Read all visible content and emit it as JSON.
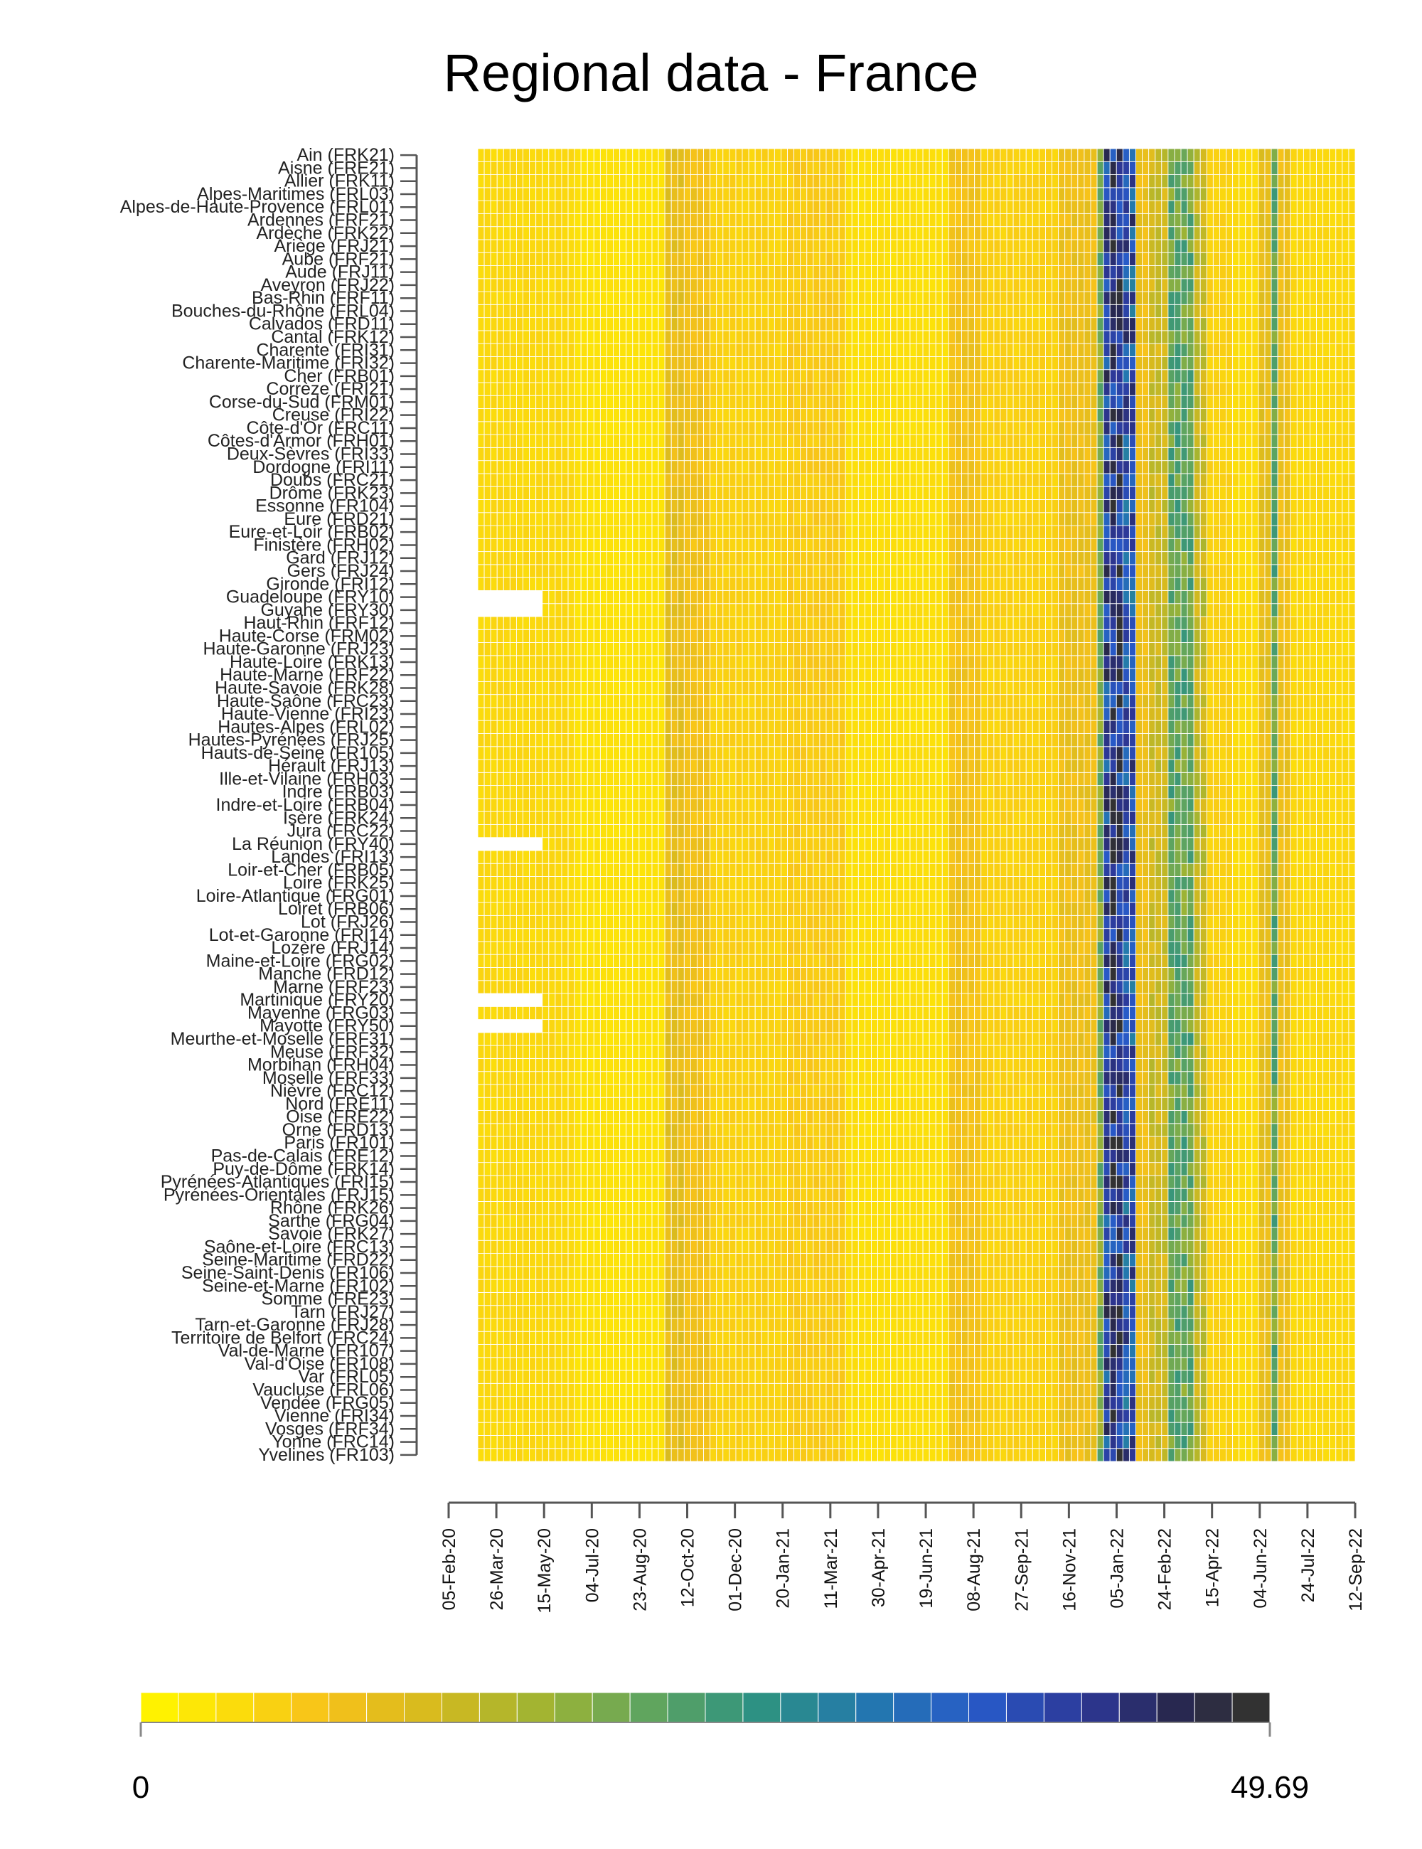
{
  "chart_data": {
    "type": "heatmap",
    "title": "Regional data - France",
    "regions": [
      "Yvelines (FR103)",
      "Yonne (FRC14)",
      "Vosges (FRF34)",
      "Vienne (FRI34)",
      "Vendée (FRG05)",
      "Vaucluse (FRL06)",
      "Var (FRL05)",
      "Val-d'Oise (FR108)",
      "Val-de-Marne (FR107)",
      "Territoire de Belfort (FRC24)",
      "Tarn-et-Garonne (FRJ28)",
      "Tarn (FRJ27)",
      "Somme (FRE23)",
      "Seine-et-Marne (FR102)",
      "Seine-Saint-Denis (FR106)",
      "Seine-Maritime (FRD22)",
      "Saône-et-Loire (FRC13)",
      "Savoie (FRK27)",
      "Sarthe (FRG04)",
      "Rhône (FRK26)",
      "Pyrénées-Orientales (FRJ15)",
      "Pyrénées-Atlantiques (FRI15)",
      "Puy-de-Dôme (FRK14)",
      "Pas-de-Calais (FRE12)",
      "Paris (FR101)",
      "Orne (FRD13)",
      "Oise (FRE22)",
      "Nord (FRE11)",
      "Nièvre (FRC12)",
      "Moselle (FRF33)",
      "Morbihan (FRH04)",
      "Meuse (FRF32)",
      "Meurthe-et-Moselle (FRF31)",
      "Mayotte (FRY50)",
      "Mayenne (FRG03)",
      "Martinique (FRY20)",
      "Marne (FRF23)",
      "Manche (FRD12)",
      "Maine-et-Loire (FRG02)",
      "Lozère (FRJ14)",
      "Lot-et-Garonne (FRI14)",
      "Lot (FRJ26)",
      "Loiret (FRB06)",
      "Loire-Atlantique (FRG01)",
      "Loire (FRK25)",
      "Loir-et-Cher (FRB05)",
      "Landes (FRI13)",
      "La Réunion (FRY40)",
      "Jura (FRC22)",
      "Isère (FRK24)",
      "Indre-et-Loire (FRB04)",
      "Indre (FRB03)",
      "Ille-et-Vilaine (FRH03)",
      "Hérault (FRJ13)",
      "Hauts-de-Seine (FR105)",
      "Hautes-Pyrénées (FRJ25)",
      "Hautes-Alpes (FRL02)",
      "Haute-Vienne (FRI23)",
      "Haute-Saône (FRC23)",
      "Haute-Savoie (FRK28)",
      "Haute-Marne (FRF22)",
      "Haute-Loire (FRK13)",
      "Haute-Garonne (FRJ23)",
      "Haute-Corse (FRM02)",
      "Haut-Rhin (FRF12)",
      "Guyane (FRY30)",
      "Guadeloupe (FRY10)",
      "Gironde (FRI12)",
      "Gers (FRJ24)",
      "Gard (FRJ12)",
      "Finistère (FRH02)",
      "Eure-et-Loir (FRB02)",
      "Eure (FRD21)",
      "Essonne (FR104)",
      "Drôme (FRK23)",
      "Doubs (FRC21)",
      "Dordogne (FRI11)",
      "Deux-Sèvres (FRI33)",
      "Côtes-d'Armor (FRH01)",
      "Côte-d'Or (FRC11)",
      "Creuse (FRI22)",
      "Corse-du-Sud (FRM01)",
      "Corrèze (FRI21)",
      "Cher (FRB01)",
      "Charente-Maritime (FRI32)",
      "Charente (FRI31)",
      "Cantal (FRK12)",
      "Calvados (FRD11)",
      "Bouches-du-Rhône (FRL04)",
      "Bas-Rhin (FRF11)",
      "Aveyron (FRJ22)",
      "Aude (FRJ11)",
      "Aube (FRF21)",
      "Ariège (FRJ21)",
      "Ardèche (FRK22)",
      "Ardennes (FRF21)",
      "Alpes-de-Haute-Provence (FRL01)",
      "Alpes-Maritimes (FRL03)",
      "Allier (FRK11)",
      "Aisne (FRE21)",
      "Ain (FRK21)"
    ],
    "x_ticks": [
      "05-Feb-20",
      "26-Mar-20",
      "15-May-20",
      "04-Jul-20",
      "23-Aug-20",
      "12-Oct-20",
      "01-Dec-20",
      "20-Jan-21",
      "11-Mar-21",
      "30-Apr-21",
      "19-Jun-21",
      "08-Aug-21",
      "27-Sep-21",
      "16-Nov-21",
      "05-Jan-22",
      "24-Feb-22",
      "15-Apr-22",
      "04-Jun-22",
      "24-Jul-22",
      "12-Sep-22"
    ],
    "week_start": "05-Feb-20",
    "n_weeks": 136,
    "value_min": 0,
    "value_max": 49.69,
    "legend_min_label": "0",
    "legend_max_label": "49.69",
    "weekly_profile": [
      {
        "from_week": 0,
        "to_week": 15,
        "value": 4
      },
      {
        "from_week": 15,
        "to_week": 29,
        "value": 2.5
      },
      {
        "from_week": 29,
        "to_week": 32,
        "value": 10
      },
      {
        "from_week": 32,
        "to_week": 36,
        "value": 8
      },
      {
        "from_week": 36,
        "to_week": 48,
        "value": 5
      },
      {
        "from_week": 48,
        "to_week": 57,
        "value": 6
      },
      {
        "from_week": 57,
        "to_week": 73,
        "value": 3
      },
      {
        "from_week": 73,
        "to_week": 78,
        "value": 8
      },
      {
        "from_week": 78,
        "to_week": 90,
        "value": 5
      },
      {
        "from_week": 90,
        "to_week": 96,
        "value": 9
      },
      {
        "from_week": 96,
        "to_week": 97,
        "value": 20
      },
      {
        "from_week": 97,
        "to_week": 98,
        "value": 40
      },
      {
        "from_week": 98,
        "to_week": 100,
        "value": 44
      },
      {
        "from_week": 100,
        "to_week": 102,
        "value": 38
      },
      {
        "from_week": 102,
        "to_week": 104,
        "value": 9
      },
      {
        "from_week": 104,
        "to_week": 107,
        "value": 13
      },
      {
        "from_week": 107,
        "to_week": 111,
        "value": 22
      },
      {
        "from_week": 111,
        "to_week": 113,
        "value": 14
      },
      {
        "from_week": 113,
        "to_week": 117,
        "value": 5
      },
      {
        "from_week": 117,
        "to_week": 121,
        "value": 3.5
      },
      {
        "from_week": 121,
        "to_week": 123,
        "value": 10
      },
      {
        "from_week": 123,
        "to_week": 124,
        "value": 22
      },
      {
        "from_week": 124,
        "to_week": 126,
        "value": 9
      },
      {
        "from_week": 126,
        "to_week": 136,
        "value": 4
      }
    ],
    "missing_data": [
      {
        "region": "Mayotte (FRY50)",
        "from_week": 0,
        "to_week": 10
      },
      {
        "region": "Martinique (FRY20)",
        "from_week": 0,
        "to_week": 10
      },
      {
        "region": "La Réunion (FRY40)",
        "from_week": 0,
        "to_week": 10
      },
      {
        "region": "Guyane (FRY30)",
        "from_week": 0,
        "to_week": 10
      },
      {
        "region": "Guadeloupe (FRY10)",
        "from_week": 0,
        "to_week": 10
      }
    ]
  }
}
